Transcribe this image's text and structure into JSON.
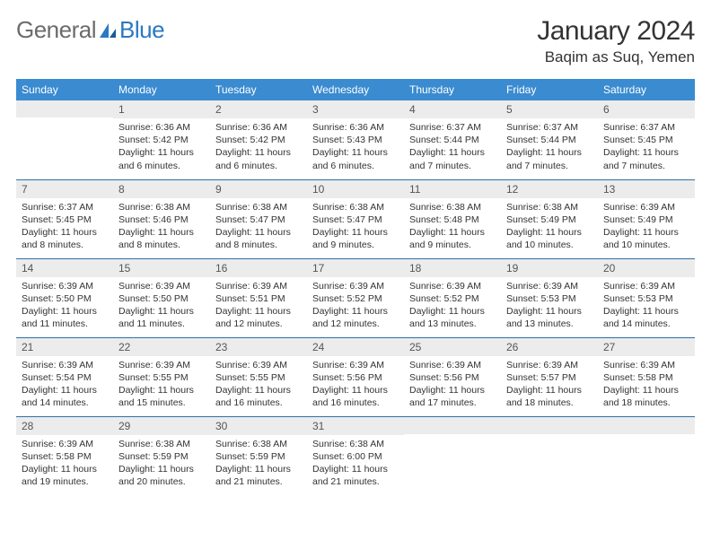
{
  "logo": {
    "text_gray": "General",
    "text_blue": "Blue"
  },
  "title": "January 2024",
  "location": "Baqim as Suq, Yemen",
  "colors": {
    "header_bg": "#3a8bd0",
    "header_text": "#ffffff",
    "daynum_bg": "#ececec",
    "row_divider": "#2f6fa8",
    "logo_gray": "#6b6b6b",
    "logo_blue": "#2b78c2"
  },
  "day_headers": [
    "Sunday",
    "Monday",
    "Tuesday",
    "Wednesday",
    "Thursday",
    "Friday",
    "Saturday"
  ],
  "weeks": [
    [
      {
        "n": "",
        "lines": []
      },
      {
        "n": "1",
        "lines": [
          "Sunrise: 6:36 AM",
          "Sunset: 5:42 PM",
          "Daylight: 11 hours and 6 minutes."
        ]
      },
      {
        "n": "2",
        "lines": [
          "Sunrise: 6:36 AM",
          "Sunset: 5:42 PM",
          "Daylight: 11 hours and 6 minutes."
        ]
      },
      {
        "n": "3",
        "lines": [
          "Sunrise: 6:36 AM",
          "Sunset: 5:43 PM",
          "Daylight: 11 hours and 6 minutes."
        ]
      },
      {
        "n": "4",
        "lines": [
          "Sunrise: 6:37 AM",
          "Sunset: 5:44 PM",
          "Daylight: 11 hours and 7 minutes."
        ]
      },
      {
        "n": "5",
        "lines": [
          "Sunrise: 6:37 AM",
          "Sunset: 5:44 PM",
          "Daylight: 11 hours and 7 minutes."
        ]
      },
      {
        "n": "6",
        "lines": [
          "Sunrise: 6:37 AM",
          "Sunset: 5:45 PM",
          "Daylight: 11 hours and 7 minutes."
        ]
      }
    ],
    [
      {
        "n": "7",
        "lines": [
          "Sunrise: 6:37 AM",
          "Sunset: 5:45 PM",
          "Daylight: 11 hours and 8 minutes."
        ]
      },
      {
        "n": "8",
        "lines": [
          "Sunrise: 6:38 AM",
          "Sunset: 5:46 PM",
          "Daylight: 11 hours and 8 minutes."
        ]
      },
      {
        "n": "9",
        "lines": [
          "Sunrise: 6:38 AM",
          "Sunset: 5:47 PM",
          "Daylight: 11 hours and 8 minutes."
        ]
      },
      {
        "n": "10",
        "lines": [
          "Sunrise: 6:38 AM",
          "Sunset: 5:47 PM",
          "Daylight: 11 hours and 9 minutes."
        ]
      },
      {
        "n": "11",
        "lines": [
          "Sunrise: 6:38 AM",
          "Sunset: 5:48 PM",
          "Daylight: 11 hours and 9 minutes."
        ]
      },
      {
        "n": "12",
        "lines": [
          "Sunrise: 6:38 AM",
          "Sunset: 5:49 PM",
          "Daylight: 11 hours and 10 minutes."
        ]
      },
      {
        "n": "13",
        "lines": [
          "Sunrise: 6:39 AM",
          "Sunset: 5:49 PM",
          "Daylight: 11 hours and 10 minutes."
        ]
      }
    ],
    [
      {
        "n": "14",
        "lines": [
          "Sunrise: 6:39 AM",
          "Sunset: 5:50 PM",
          "Daylight: 11 hours and 11 minutes."
        ]
      },
      {
        "n": "15",
        "lines": [
          "Sunrise: 6:39 AM",
          "Sunset: 5:50 PM",
          "Daylight: 11 hours and 11 minutes."
        ]
      },
      {
        "n": "16",
        "lines": [
          "Sunrise: 6:39 AM",
          "Sunset: 5:51 PM",
          "Daylight: 11 hours and 12 minutes."
        ]
      },
      {
        "n": "17",
        "lines": [
          "Sunrise: 6:39 AM",
          "Sunset: 5:52 PM",
          "Daylight: 11 hours and 12 minutes."
        ]
      },
      {
        "n": "18",
        "lines": [
          "Sunrise: 6:39 AM",
          "Sunset: 5:52 PM",
          "Daylight: 11 hours and 13 minutes."
        ]
      },
      {
        "n": "19",
        "lines": [
          "Sunrise: 6:39 AM",
          "Sunset: 5:53 PM",
          "Daylight: 11 hours and 13 minutes."
        ]
      },
      {
        "n": "20",
        "lines": [
          "Sunrise: 6:39 AM",
          "Sunset: 5:53 PM",
          "Daylight: 11 hours and 14 minutes."
        ]
      }
    ],
    [
      {
        "n": "21",
        "lines": [
          "Sunrise: 6:39 AM",
          "Sunset: 5:54 PM",
          "Daylight: 11 hours and 14 minutes."
        ]
      },
      {
        "n": "22",
        "lines": [
          "Sunrise: 6:39 AM",
          "Sunset: 5:55 PM",
          "Daylight: 11 hours and 15 minutes."
        ]
      },
      {
        "n": "23",
        "lines": [
          "Sunrise: 6:39 AM",
          "Sunset: 5:55 PM",
          "Daylight: 11 hours and 16 minutes."
        ]
      },
      {
        "n": "24",
        "lines": [
          "Sunrise: 6:39 AM",
          "Sunset: 5:56 PM",
          "Daylight: 11 hours and 16 minutes."
        ]
      },
      {
        "n": "25",
        "lines": [
          "Sunrise: 6:39 AM",
          "Sunset: 5:56 PM",
          "Daylight: 11 hours and 17 minutes."
        ]
      },
      {
        "n": "26",
        "lines": [
          "Sunrise: 6:39 AM",
          "Sunset: 5:57 PM",
          "Daylight: 11 hours and 18 minutes."
        ]
      },
      {
        "n": "27",
        "lines": [
          "Sunrise: 6:39 AM",
          "Sunset: 5:58 PM",
          "Daylight: 11 hours and 18 minutes."
        ]
      }
    ],
    [
      {
        "n": "28",
        "lines": [
          "Sunrise: 6:39 AM",
          "Sunset: 5:58 PM",
          "Daylight: 11 hours and 19 minutes."
        ]
      },
      {
        "n": "29",
        "lines": [
          "Sunrise: 6:38 AM",
          "Sunset: 5:59 PM",
          "Daylight: 11 hours and 20 minutes."
        ]
      },
      {
        "n": "30",
        "lines": [
          "Sunrise: 6:38 AM",
          "Sunset: 5:59 PM",
          "Daylight: 11 hours and 21 minutes."
        ]
      },
      {
        "n": "31",
        "lines": [
          "Sunrise: 6:38 AM",
          "Sunset: 6:00 PM",
          "Daylight: 11 hours and 21 minutes."
        ]
      },
      {
        "n": "",
        "lines": []
      },
      {
        "n": "",
        "lines": []
      },
      {
        "n": "",
        "lines": []
      }
    ]
  ]
}
